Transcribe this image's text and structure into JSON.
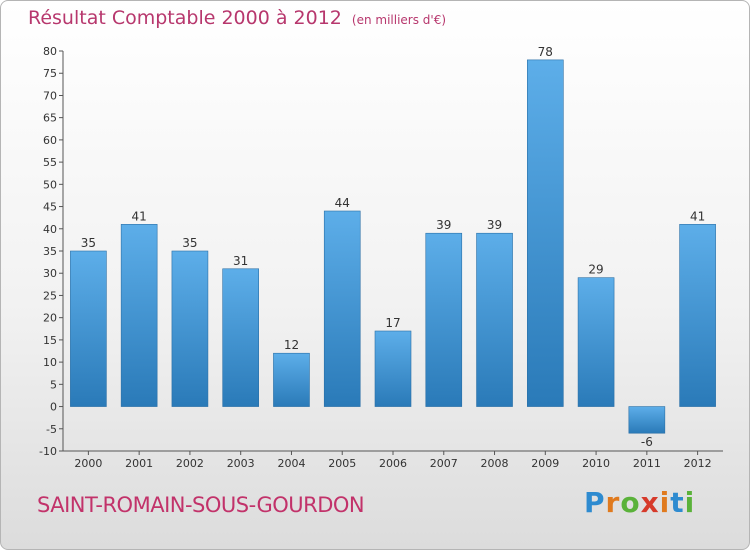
{
  "title": "Résultat Comptable 2000 à 2012",
  "subtitle": "(en milliers d'€)",
  "commune": "SAINT-ROMAIN-SOUS-GOURDON",
  "logo": {
    "text": "Proxiti",
    "letters": [
      "P",
      "r",
      "o",
      "x",
      "i",
      "t",
      "i"
    ],
    "colors": [
      "#2e8bd0",
      "#e07a1e",
      "#5ab23a",
      "#d63a2a",
      "#e07a1e",
      "#2e8bd0",
      "#5ab23a"
    ]
  },
  "colors": {
    "bar_top": "#5daee9",
    "bar_bottom": "#2a7ab8",
    "title": "#b7376d"
  },
  "chart_data": {
    "type": "bar",
    "title": "Résultat Comptable 2000 à 2012",
    "subtitle": "(en milliers d'€)",
    "xlabel": "",
    "ylabel": "",
    "categories": [
      "2000",
      "2001",
      "2002",
      "2003",
      "2004",
      "2005",
      "2006",
      "2007",
      "2008",
      "2009",
      "2010",
      "2011",
      "2012"
    ],
    "values": [
      35,
      41,
      35,
      31,
      12,
      44,
      17,
      39,
      39,
      78,
      29,
      -6,
      41
    ],
    "ylim": [
      -10,
      80
    ],
    "yticks": [
      -10,
      -5,
      0,
      5,
      10,
      15,
      20,
      25,
      30,
      35,
      40,
      45,
      50,
      55,
      60,
      65,
      70,
      75,
      80
    ],
    "grid": false,
    "legend": "none"
  }
}
